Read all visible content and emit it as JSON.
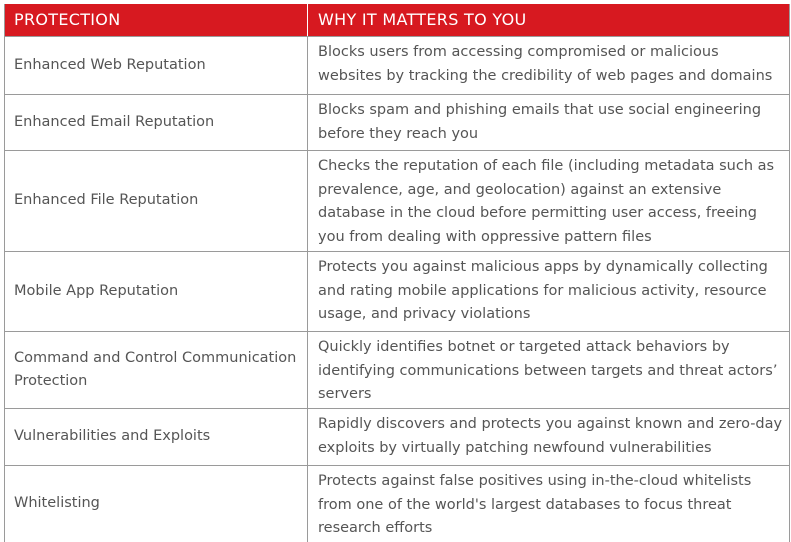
{
  "table": {
    "headers": {
      "protection": "PROTECTION",
      "why": "WHY IT MATTERS TO YOU"
    },
    "rows": [
      {
        "protection": "Enhanced Web Reputation",
        "description": "Blocks users from accessing compromised or malicious websites by tracking the credibility of web pages and domains"
      },
      {
        "protection": "Enhanced Email Reputation",
        "description": "Blocks spam and phishing emails that use social engineering before they reach you"
      },
      {
        "protection": "Enhanced File Reputation",
        "description": "Checks the reputation of each file (including metadata such as prevalence, age, and geolocation) against an extensive database in the cloud before permitting user access, freeing you from dealing with oppressive pattern files"
      },
      {
        "protection": "Mobile App Reputation",
        "description": "Protects you against malicious apps by dynamically collecting and rating mobile applications for malicious activity, resource usage, and privacy violations"
      },
      {
        "protection": "Command and Control Communication Protection",
        "description": "Quickly identifies botnet or targeted attack behaviors by identifying communications between targets and threat actors’ servers"
      },
      {
        "protection": "Vulnerabilities and Exploits",
        "description": "Rapidly discovers and protects you against known and zero-day exploits by virtually patching newfound vulnerabilities"
      },
      {
        "protection": "Whitelisting",
        "description": "Protects against false positives using in-the-cloud whitelists from one of the world's largest databases to focus threat research efforts"
      }
    ]
  },
  "colors": {
    "header_background": "#d71920",
    "header_text": "#ffffff",
    "body_text": "#555555",
    "border": "#9a9a9a"
  }
}
